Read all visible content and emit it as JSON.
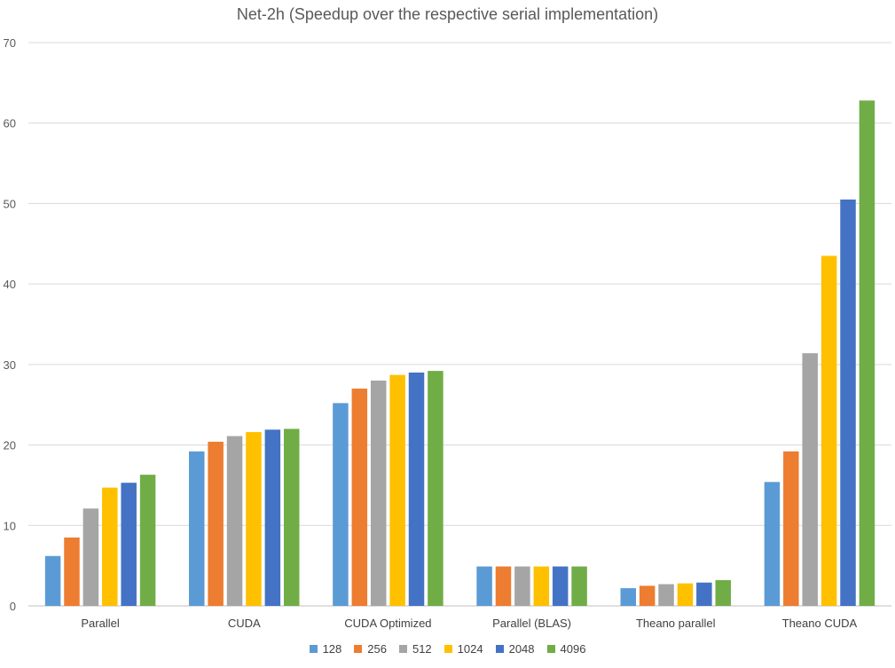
{
  "chart_data": {
    "type": "bar",
    "title": "Net-2h (Speedup over the respective serial implementation)",
    "xlabel": "",
    "ylabel": "",
    "ylim": [
      0,
      70
    ],
    "yticks": [
      0,
      10,
      20,
      30,
      40,
      50,
      60,
      70
    ],
    "grid": true,
    "legend_position": "bottom",
    "categories": [
      "Parallel",
      "CUDA",
      "CUDA Optimized",
      "Parallel (BLAS)",
      "Theano parallel",
      "Theano CUDA"
    ],
    "series": [
      {
        "name": "128",
        "color": "#5B9BD5",
        "values": [
          6.2,
          19.2,
          25.2,
          4.9,
          2.2,
          15.4
        ]
      },
      {
        "name": "256",
        "color": "#ED7D31",
        "values": [
          8.5,
          20.4,
          27.0,
          4.9,
          2.5,
          19.2
        ]
      },
      {
        "name": "512",
        "color": "#A5A5A5",
        "values": [
          12.1,
          21.1,
          28.0,
          4.9,
          2.7,
          31.4
        ]
      },
      {
        "name": "1024",
        "color": "#FFC000",
        "values": [
          14.7,
          21.6,
          28.7,
          4.9,
          2.8,
          43.5
        ]
      },
      {
        "name": "2048",
        "color": "#4472C4",
        "values": [
          15.3,
          21.9,
          29.0,
          4.9,
          2.9,
          50.5
        ]
      },
      {
        "name": "4096",
        "color": "#70AD47",
        "values": [
          16.3,
          22.0,
          29.2,
          4.9,
          3.2,
          62.8
        ]
      }
    ]
  }
}
